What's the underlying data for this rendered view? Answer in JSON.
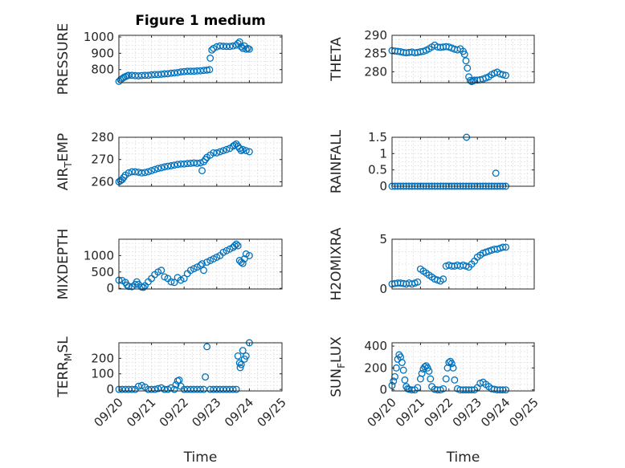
{
  "figure": {
    "title": "Figure 1 medium",
    "marker_color": "#0072bd"
  },
  "chart_data": [
    {
      "id": "pressure",
      "type": "scatter",
      "title": "Figure 1 medium",
      "ylabel": {
        "parts": [
          {
            "t": "PRESSURE"
          }
        ]
      },
      "xlabel": "",
      "ylim": [
        720,
        1010
      ],
      "yticks": [
        800,
        900,
        1000
      ],
      "ytick_labels": [
        "800",
        "900",
        "1000"
      ],
      "xlim": [
        0,
        5
      ],
      "xticks": [
        0,
        1,
        2,
        3,
        4,
        5
      ],
      "xtick_labels": [],
      "grid": true,
      "x": [
        0.0,
        0.05,
        0.1,
        0.15,
        0.2,
        0.25,
        0.3,
        0.4,
        0.5,
        0.6,
        0.7,
        0.8,
        0.9,
        1.0,
        1.1,
        1.2,
        1.3,
        1.4,
        1.5,
        1.6,
        1.7,
        1.8,
        1.9,
        2.0,
        2.1,
        2.2,
        2.3,
        2.4,
        2.5,
        2.6,
        2.7,
        2.78,
        2.8,
        2.85,
        2.9,
        3.0,
        3.1,
        3.2,
        3.3,
        3.4,
        3.5,
        3.6,
        3.65,
        3.7,
        3.75,
        3.8,
        3.85,
        3.9,
        3.95,
        4.0
      ],
      "y": [
        728,
        738,
        745,
        752,
        757,
        762,
        765,
        765,
        763,
        762,
        764,
        765,
        765,
        768,
        770,
        770,
        772,
        774,
        775,
        778,
        780,
        782,
        786,
        788,
        790,
        790,
        790,
        792,
        793,
        795,
        797,
        800,
        870,
        920,
        930,
        940,
        945,
        943,
        942,
        942,
        945,
        950,
        960,
        970,
        940,
        930,
        945,
        925,
        930,
        925
      ]
    },
    {
      "id": "theta",
      "type": "scatter",
      "ylabel": {
        "parts": [
          {
            "t": "THETA"
          }
        ]
      },
      "xlabel": "",
      "ylim": [
        277,
        290
      ],
      "yticks": [
        280,
        285,
        290
      ],
      "ytick_labels": [
        "280",
        "285",
        "290"
      ],
      "xlim": [
        0,
        5
      ],
      "xticks": [
        0,
        1,
        2,
        3,
        4,
        5
      ],
      "xtick_labels": [],
      "grid": true,
      "x": [
        0.0,
        0.1,
        0.2,
        0.3,
        0.4,
        0.5,
        0.6,
        0.7,
        0.8,
        0.9,
        1.0,
        1.1,
        1.2,
        1.3,
        1.4,
        1.5,
        1.6,
        1.7,
        1.8,
        1.9,
        2.0,
        2.1,
        2.2,
        2.3,
        2.4,
        2.5,
        2.55,
        2.6,
        2.65,
        2.7,
        2.75,
        2.8,
        2.85,
        2.9,
        3.0,
        3.1,
        3.2,
        3.3,
        3.4,
        3.5,
        3.6,
        3.7,
        3.8,
        3.9,
        4.0
      ],
      "y": [
        285.8,
        285.7,
        285.6,
        285.5,
        285.3,
        285.2,
        285.3,
        285.4,
        285.2,
        285.3,
        285.5,
        285.6,
        285.9,
        286.3,
        286.8,
        287.3,
        286.8,
        286.7,
        286.8,
        286.9,
        286.8,
        286.5,
        286.2,
        286.0,
        286.3,
        285.6,
        284.8,
        283.0,
        281.0,
        278.6,
        277.6,
        277.3,
        277.5,
        277.7,
        277.7,
        277.8,
        278.0,
        278.3,
        278.6,
        279.2,
        279.6,
        279.9,
        279.4,
        279.2,
        279.0
      ]
    },
    {
      "id": "air_temp",
      "type": "scatter",
      "ylabel": {
        "parts": [
          {
            "t": "AIR"
          },
          {
            "t": "T",
            "sub": true
          },
          {
            "t": "EMP"
          }
        ]
      },
      "xlabel": "",
      "ylim": [
        258,
        280
      ],
      "yticks": [
        260,
        270,
        280
      ],
      "ytick_labels": [
        "260",
        "270",
        "280"
      ],
      "xlim": [
        0,
        5
      ],
      "xticks": [
        0,
        1,
        2,
        3,
        4,
        5
      ],
      "xtick_labels": [],
      "grid": true,
      "x": [
        0.0,
        0.05,
        0.1,
        0.15,
        0.2,
        0.3,
        0.4,
        0.5,
        0.6,
        0.7,
        0.8,
        0.9,
        1.0,
        1.1,
        1.2,
        1.3,
        1.4,
        1.5,
        1.6,
        1.7,
        1.8,
        1.9,
        2.0,
        2.1,
        2.2,
        2.3,
        2.4,
        2.5,
        2.55,
        2.6,
        2.65,
        2.7,
        2.8,
        2.9,
        3.0,
        3.1,
        3.2,
        3.3,
        3.4,
        3.5,
        3.55,
        3.6,
        3.65,
        3.7,
        3.75,
        3.8,
        3.9,
        4.0
      ],
      "y": [
        260,
        260.5,
        261,
        262,
        263,
        264,
        264.5,
        264.5,
        264.3,
        264,
        264.2,
        264.5,
        265,
        265.5,
        266,
        266.3,
        266.7,
        267,
        267.2,
        267.5,
        267.8,
        268,
        268,
        268.2,
        268.3,
        268.5,
        268.3,
        268.5,
        265,
        269,
        270,
        271,
        272,
        273,
        273,
        273.5,
        274,
        274.5,
        275,
        276,
        276.5,
        277,
        276,
        275,
        274,
        274.5,
        274,
        273.5
      ]
    },
    {
      "id": "rainfall",
      "type": "scatter",
      "ylabel": {
        "parts": [
          {
            "t": "RAINFALL"
          }
        ]
      },
      "xlabel": "",
      "ylim": [
        0,
        1.5
      ],
      "yticks": [
        0,
        0.5,
        1,
        1.5
      ],
      "ytick_labels": [
        "0",
        "0.5",
        "1",
        "1.5"
      ],
      "xlim": [
        0,
        5
      ],
      "xticks": [
        0,
        1,
        2,
        3,
        4,
        5
      ],
      "xtick_labels": [],
      "grid": true,
      "x": [
        0.0,
        0.1,
        0.2,
        0.3,
        0.4,
        0.5,
        0.6,
        0.7,
        0.8,
        0.9,
        1.0,
        1.1,
        1.2,
        1.3,
        1.4,
        1.5,
        1.6,
        1.7,
        1.8,
        1.9,
        2.0,
        2.1,
        2.2,
        2.3,
        2.4,
        2.5,
        2.6,
        2.62,
        2.7,
        2.8,
        2.9,
        3.0,
        3.1,
        3.2,
        3.3,
        3.4,
        3.5,
        3.6,
        3.65,
        3.7,
        3.8,
        3.9,
        4.0
      ],
      "y": [
        0,
        0,
        0,
        0,
        0,
        0,
        0,
        0,
        0,
        0,
        0,
        0,
        0,
        0,
        0,
        0,
        0,
        0,
        0,
        0,
        0,
        0,
        0,
        0,
        0,
        0,
        0,
        1.5,
        0,
        0,
        0,
        0,
        0,
        0,
        0,
        0,
        0,
        0,
        0.4,
        0,
        0,
        0,
        0
      ]
    },
    {
      "id": "mixdepth",
      "type": "scatter",
      "ylabel": {
        "parts": [
          {
            "t": "MIXDEPTH"
          }
        ]
      },
      "xlabel": "",
      "ylim": [
        -20,
        1500
      ],
      "yticks": [
        0,
        500,
        1000
      ],
      "ytick_labels": [
        "0",
        "500",
        "1000"
      ],
      "xlim": [
        0,
        5
      ],
      "xticks": [
        0,
        1,
        2,
        3,
        4,
        5
      ],
      "xtick_labels": [],
      "grid": true,
      "x": [
        0.0,
        0.1,
        0.2,
        0.25,
        0.3,
        0.4,
        0.5,
        0.55,
        0.6,
        0.7,
        0.75,
        0.8,
        0.9,
        1.0,
        1.1,
        1.2,
        1.3,
        1.4,
        1.5,
        1.6,
        1.7,
        1.8,
        1.9,
        2.0,
        2.1,
        2.2,
        2.3,
        2.4,
        2.5,
        2.55,
        2.6,
        2.7,
        2.8,
        2.9,
        3.0,
        3.1,
        3.2,
        3.3,
        3.4,
        3.5,
        3.55,
        3.6,
        3.65,
        3.7,
        3.75,
        3.8,
        3.85,
        3.9,
        4.0
      ],
      "y": [
        250,
        240,
        180,
        100,
        60,
        50,
        120,
        200,
        120,
        40,
        30,
        80,
        200,
        300,
        420,
        500,
        550,
        350,
        300,
        200,
        180,
        330,
        250,
        300,
        450,
        550,
        600,
        650,
        700,
        750,
        550,
        800,
        850,
        900,
        950,
        1000,
        1100,
        1150,
        1200,
        1250,
        1300,
        1350,
        1300,
        850,
        800,
        760,
        900,
        1050,
        1000
      ]
    },
    {
      "id": "h2omixra",
      "type": "scatter",
      "ylabel": {
        "parts": [
          {
            "t": "H2OMIXRA"
          }
        ]
      },
      "xlabel": "",
      "ylim": [
        0,
        5
      ],
      "yticks": [
        0,
        5
      ],
      "ytick_labels": [
        "0",
        "5"
      ],
      "xlim": [
        0,
        5
      ],
      "xticks": [
        0,
        1,
        2,
        3,
        4,
        5
      ],
      "xtick_labels": [],
      "grid": true,
      "x": [
        0.0,
        0.1,
        0.2,
        0.3,
        0.4,
        0.5,
        0.6,
        0.7,
        0.8,
        0.9,
        1.0,
        1.1,
        1.2,
        1.3,
        1.4,
        1.5,
        1.6,
        1.7,
        1.8,
        1.9,
        2.0,
        2.1,
        2.2,
        2.3,
        2.4,
        2.5,
        2.6,
        2.7,
        2.8,
        2.9,
        3.0,
        3.1,
        3.2,
        3.3,
        3.4,
        3.5,
        3.6,
        3.7,
        3.8,
        3.9,
        4.0
      ],
      "y": [
        0.5,
        0.55,
        0.6,
        0.6,
        0.55,
        0.5,
        0.6,
        0.5,
        0.6,
        0.7,
        2.0,
        1.8,
        1.6,
        1.4,
        1.2,
        1.0,
        0.9,
        0.8,
        1.0,
        2.3,
        2.4,
        2.3,
        2.3,
        2.4,
        2.3,
        2.4,
        2.3,
        2.2,
        2.5,
        2.8,
        3.2,
        3.4,
        3.6,
        3.7,
        3.8,
        3.9,
        4.0,
        4.0,
        4.1,
        4.2,
        4.2
      ]
    },
    {
      "id": "terr_msl",
      "type": "scatter",
      "ylabel": {
        "parts": [
          {
            "t": "TERR"
          },
          {
            "t": "M",
            "sub": true
          },
          {
            "t": "SL"
          }
        ]
      },
      "xlabel": "Time",
      "ylim": [
        -10,
        300
      ],
      "yticks": [
        0,
        100,
        200
      ],
      "ytick_labels": [
        "0",
        "100",
        "200"
      ],
      "xlim": [
        0,
        5
      ],
      "xticks": [
        0,
        1,
        2,
        3,
        4,
        5
      ],
      "xtick_labels": [
        "09/20",
        "09/21",
        "09/22",
        "09/23",
        "09/24",
        "09/25"
      ],
      "grid": true,
      "x": [
        0.0,
        0.1,
        0.2,
        0.3,
        0.4,
        0.5,
        0.6,
        0.7,
        0.8,
        0.9,
        1.0,
        1.1,
        1.2,
        1.3,
        1.4,
        1.5,
        1.6,
        1.7,
        1.75,
        1.8,
        1.85,
        1.9,
        2.0,
        2.1,
        2.2,
        2.3,
        2.4,
        2.5,
        2.6,
        2.65,
        2.7,
        2.8,
        2.9,
        3.0,
        3.1,
        3.2,
        3.3,
        3.4,
        3.5,
        3.6,
        3.65,
        3.7,
        3.72,
        3.75,
        3.8,
        3.85,
        3.9,
        4.0
      ],
      "y": [
        0,
        0,
        0,
        0,
        0,
        0,
        20,
        25,
        15,
        0,
        0,
        0,
        5,
        10,
        0,
        0,
        10,
        0,
        30,
        55,
        60,
        20,
        0,
        0,
        0,
        0,
        0,
        0,
        0,
        80,
        275,
        0,
        0,
        0,
        0,
        0,
        0,
        0,
        0,
        0,
        215,
        170,
        140,
        160,
        250,
        195,
        215,
        300
      ]
    },
    {
      "id": "sun_flux",
      "type": "scatter",
      "ylabel": {
        "parts": [
          {
            "t": "SUN"
          },
          {
            "t": "F",
            "sub": true
          },
          {
            "t": "LUX"
          }
        ]
      },
      "xlabel": "Time",
      "ylim": [
        -10,
        430
      ],
      "yticks": [
        0,
        200,
        400
      ],
      "ytick_labels": [
        "0",
        "200",
        "400"
      ],
      "xlim": [
        0,
        5
      ],
      "xticks": [
        0,
        1,
        2,
        3,
        4,
        5
      ],
      "xtick_labels": [
        "09/20",
        "09/21",
        "09/22",
        "09/23",
        "09/24",
        "09/25"
      ],
      "grid": true,
      "x": [
        0.0,
        0.05,
        0.1,
        0.15,
        0.2,
        0.25,
        0.3,
        0.35,
        0.4,
        0.45,
        0.5,
        0.55,
        0.6,
        0.7,
        0.8,
        0.9,
        1.0,
        1.05,
        1.1,
        1.15,
        1.2,
        1.25,
        1.3,
        1.35,
        1.4,
        1.5,
        1.6,
        1.7,
        1.8,
        1.9,
        1.95,
        2.0,
        2.05,
        2.1,
        2.15,
        2.2,
        2.3,
        2.4,
        2.5,
        2.6,
        2.7,
        2.8,
        2.9,
        3.0,
        3.1,
        3.2,
        3.3,
        3.4,
        3.5,
        3.6,
        3.7,
        3.8,
        3.9,
        4.0
      ],
      "y": [
        40,
        80,
        120,
        200,
        280,
        320,
        300,
        250,
        180,
        90,
        30,
        10,
        5,
        0,
        0,
        20,
        100,
        150,
        190,
        210,
        220,
        200,
        170,
        100,
        30,
        5,
        0,
        0,
        10,
        100,
        200,
        250,
        260,
        240,
        200,
        90,
        10,
        0,
        0,
        0,
        0,
        0,
        0,
        20,
        60,
        70,
        50,
        30,
        10,
        5,
        0,
        0,
        0,
        0
      ]
    }
  ]
}
